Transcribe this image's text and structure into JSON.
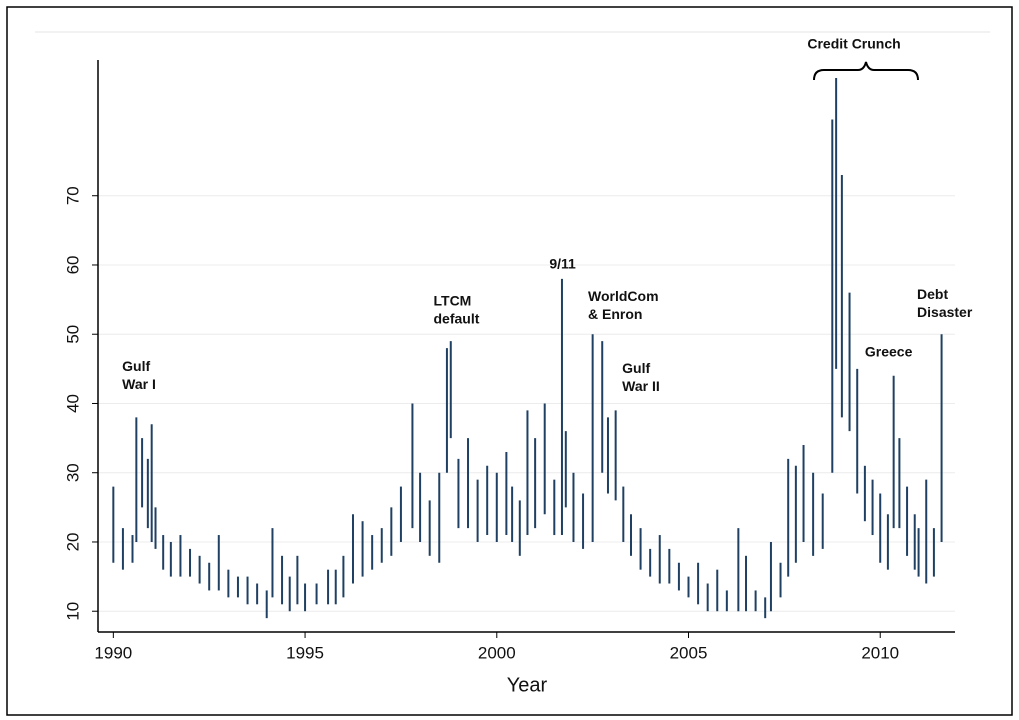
{
  "chart_data": {
    "type": "range-bar",
    "x_label": "Year",
    "color": "#1f4063",
    "x": [
      1990.0,
      1990.25,
      1990.5,
      1990.6,
      1990.75,
      1990.9,
      1991.0,
      1991.1,
      1991.3,
      1991.5,
      1991.75,
      1992.0,
      1992.25,
      1992.5,
      1992.75,
      1993.0,
      1993.25,
      1993.5,
      1993.75,
      1994.0,
      1994.15,
      1994.4,
      1994.6,
      1994.8,
      1995.0,
      1995.3,
      1995.6,
      1995.8,
      1996.0,
      1996.25,
      1996.5,
      1996.75,
      1997.0,
      1997.25,
      1997.5,
      1997.8,
      1998.0,
      1998.25,
      1998.5,
      1998.7,
      1998.8,
      1999.0,
      1999.25,
      1999.5,
      1999.75,
      2000.0,
      2000.25,
      2000.4,
      2000.6,
      2000.8,
      2001.0,
      2001.25,
      2001.5,
      2001.7,
      2001.8,
      2002.0,
      2002.25,
      2002.5,
      2002.75,
      2002.9,
      2003.1,
      2003.3,
      2003.5,
      2003.75,
      2004.0,
      2004.25,
      2004.5,
      2004.75,
      2005.0,
      2005.25,
      2005.5,
      2005.75,
      2006.0,
      2006.3,
      2006.5,
      2006.75,
      2007.0,
      2007.15,
      2007.4,
      2007.6,
      2007.8,
      2008.0,
      2008.25,
      2008.5,
      2008.75,
      2008.85,
      2009.0,
      2009.2,
      2009.4,
      2009.6,
      2009.8,
      2010.0,
      2010.2,
      2010.35,
      2010.5,
      2010.7,
      2010.9,
      2011.0,
      2011.2,
      2011.4,
      2011.6
    ],
    "low": [
      17,
      16,
      17,
      20,
      25,
      22,
      20,
      19,
      16,
      15,
      15,
      15,
      14,
      13,
      13,
      12,
      12,
      11,
      11,
      9,
      12,
      11,
      10,
      11,
      10,
      11,
      11,
      11,
      12,
      14,
      15,
      16,
      17,
      18,
      20,
      22,
      20,
      18,
      17,
      30,
      35,
      22,
      22,
      20,
      21,
      20,
      21,
      20,
      18,
      21,
      22,
      24,
      21,
      21,
      25,
      20,
      19,
      20,
      30,
      27,
      26,
      20,
      18,
      16,
      15,
      14,
      14,
      13,
      12,
      11,
      10,
      10,
      10,
      10,
      10,
      10,
      9,
      10,
      12,
      15,
      17,
      20,
      18,
      19,
      30,
      45,
      38,
      36,
      27,
      23,
      21,
      17,
      16,
      22,
      22,
      18,
      16,
      15,
      14,
      15,
      20
    ],
    "high": [
      28,
      22,
      21,
      38,
      35,
      32,
      37,
      25,
      21,
      20,
      21,
      19,
      18,
      17,
      21,
      16,
      15,
      15,
      14,
      13,
      22,
      18,
      15,
      18,
      14,
      14,
      16,
      16,
      18,
      24,
      23,
      21,
      22,
      25,
      28,
      40,
      30,
      26,
      30,
      48,
      49,
      32,
      35,
      29,
      31,
      30,
      33,
      28,
      26,
      39,
      35,
      40,
      29,
      58,
      36,
      30,
      27,
      50,
      49,
      38,
      39,
      28,
      24,
      22,
      19,
      21,
      19,
      17,
      15,
      17,
      14,
      16,
      13,
      22,
      18,
      13,
      12,
      20,
      17,
      32,
      31,
      34,
      30,
      27,
      81,
      87,
      73,
      56,
      45,
      31,
      29,
      27,
      24,
      44,
      35,
      28,
      24,
      22,
      29,
      22,
      50
    ],
    "xlim": [
      1989.6,
      2011.95
    ],
    "xticks": [
      1990,
      1995,
      2000,
      2005,
      2010
    ],
    "ylim": [
      7,
      89.6
    ],
    "yticks": [
      10,
      20,
      30,
      40,
      50,
      60,
      70
    ],
    "grid": true,
    "annotations": [
      {
        "lines": [
          "Gulf",
          "War I"
        ],
        "x": 1990.23,
        "y": 45.2
      },
      {
        "lines": [
          "LTCM",
          "default"
        ],
        "x": 1998.35,
        "y": 54.7
      },
      {
        "lines": [
          "9/11"
        ],
        "x": 2001.37,
        "y": 60
      },
      {
        "lines": [
          "WorldCom",
          "& Enron"
        ],
        "x": 2002.38,
        "y": 55.3
      },
      {
        "lines": [
          "Gulf",
          "War II"
        ],
        "x": 2003.27,
        "y": 44.9
      },
      {
        "lines": [
          "Credit Crunch"
        ],
        "x": 2008.1,
        "y": 91.8
      },
      {
        "lines": [
          "Greece"
        ],
        "x": 2009.6,
        "y": 47.3
      },
      {
        "lines": [
          "Debt",
          "Disaster"
        ],
        "x": 2010.96,
        "y": 55.6
      }
    ]
  }
}
